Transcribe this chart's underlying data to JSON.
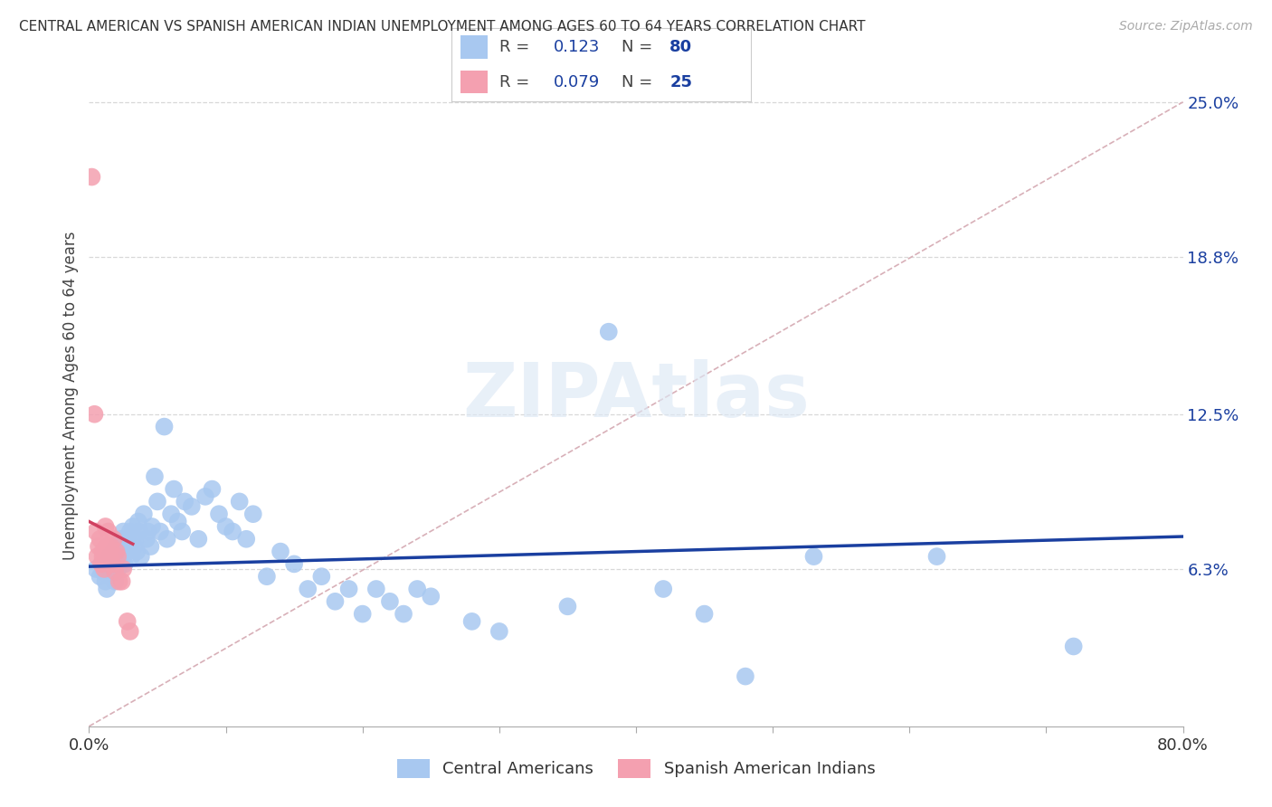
{
  "title": "CENTRAL AMERICAN VS SPANISH AMERICAN INDIAN UNEMPLOYMENT AMONG AGES 60 TO 64 YEARS CORRELATION CHART",
  "source": "Source: ZipAtlas.com",
  "ylabel": "Unemployment Among Ages 60 to 64 years",
  "xlim": [
    0.0,
    0.8
  ],
  "ylim": [
    0.0,
    0.265
  ],
  "xtick_positions": [
    0.0,
    0.1,
    0.2,
    0.3,
    0.4,
    0.5,
    0.6,
    0.7,
    0.8
  ],
  "xticklabels": [
    "0.0%",
    "",
    "",
    "",
    "",
    "",
    "",
    "",
    "80.0%"
  ],
  "ytick_positions": [
    0.063,
    0.125,
    0.188,
    0.25
  ],
  "ytick_labels": [
    "6.3%",
    "12.5%",
    "18.8%",
    "25.0%"
  ],
  "blue_R": 0.123,
  "blue_N": 80,
  "pink_R": 0.079,
  "pink_N": 25,
  "blue_color": "#a8c8f0",
  "pink_color": "#f4a0b0",
  "blue_line_color": "#1a3fa0",
  "pink_line_color": "#d04060",
  "diag_line_color": "#d8b0b8",
  "background_color": "#ffffff",
  "grid_color": "#d8d8d8",
  "legend_label_blue": "Central Americans",
  "legend_label_pink": "Spanish American Indians",
  "blue_scatter_x": [
    0.005,
    0.008,
    0.01,
    0.012,
    0.013,
    0.015,
    0.015,
    0.017,
    0.018,
    0.019,
    0.02,
    0.02,
    0.021,
    0.022,
    0.022,
    0.023,
    0.024,
    0.025,
    0.025,
    0.026,
    0.027,
    0.028,
    0.029,
    0.03,
    0.031,
    0.032,
    0.033,
    0.034,
    0.035,
    0.036,
    0.037,
    0.038,
    0.04,
    0.042,
    0.043,
    0.045,
    0.046,
    0.048,
    0.05,
    0.052,
    0.055,
    0.057,
    0.06,
    0.062,
    0.065,
    0.068,
    0.07,
    0.075,
    0.08,
    0.085,
    0.09,
    0.095,
    0.1,
    0.105,
    0.11,
    0.115,
    0.12,
    0.13,
    0.14,
    0.15,
    0.16,
    0.17,
    0.18,
    0.19,
    0.2,
    0.21,
    0.22,
    0.23,
    0.24,
    0.25,
    0.28,
    0.3,
    0.35,
    0.38,
    0.42,
    0.45,
    0.48,
    0.53,
    0.62,
    0.72
  ],
  "blue_scatter_y": [
    0.063,
    0.06,
    0.062,
    0.058,
    0.055,
    0.065,
    0.068,
    0.062,
    0.07,
    0.058,
    0.068,
    0.072,
    0.063,
    0.07,
    0.065,
    0.075,
    0.072,
    0.068,
    0.078,
    0.065,
    0.07,
    0.075,
    0.072,
    0.078,
    0.068,
    0.08,
    0.072,
    0.075,
    0.07,
    0.082,
    0.078,
    0.068,
    0.085,
    0.075,
    0.078,
    0.072,
    0.08,
    0.1,
    0.09,
    0.078,
    0.12,
    0.075,
    0.085,
    0.095,
    0.082,
    0.078,
    0.09,
    0.088,
    0.075,
    0.092,
    0.095,
    0.085,
    0.08,
    0.078,
    0.09,
    0.075,
    0.085,
    0.06,
    0.07,
    0.065,
    0.055,
    0.06,
    0.05,
    0.055,
    0.045,
    0.055,
    0.05,
    0.045,
    0.055,
    0.052,
    0.042,
    0.038,
    0.048,
    0.158,
    0.055,
    0.045,
    0.02,
    0.068,
    0.068,
    0.032
  ],
  "pink_scatter_x": [
    0.002,
    0.004,
    0.005,
    0.006,
    0.007,
    0.008,
    0.009,
    0.01,
    0.01,
    0.011,
    0.012,
    0.013,
    0.014,
    0.015,
    0.016,
    0.017,
    0.018,
    0.019,
    0.02,
    0.021,
    0.022,
    0.024,
    0.025,
    0.028,
    0.03
  ],
  "pink_scatter_y": [
    0.22,
    0.125,
    0.078,
    0.068,
    0.072,
    0.075,
    0.065,
    0.07,
    0.068,
    0.063,
    0.08,
    0.072,
    0.078,
    0.068,
    0.072,
    0.065,
    0.075,
    0.062,
    0.07,
    0.068,
    0.058,
    0.058,
    0.063,
    0.042,
    0.038
  ],
  "blue_trend_x": [
    0.0,
    0.8
  ],
  "blue_trend_y": [
    0.064,
    0.076
  ],
  "pink_trend_x": [
    0.0,
    0.032
  ],
  "pink_trend_y": [
    0.082,
    0.073
  ]
}
